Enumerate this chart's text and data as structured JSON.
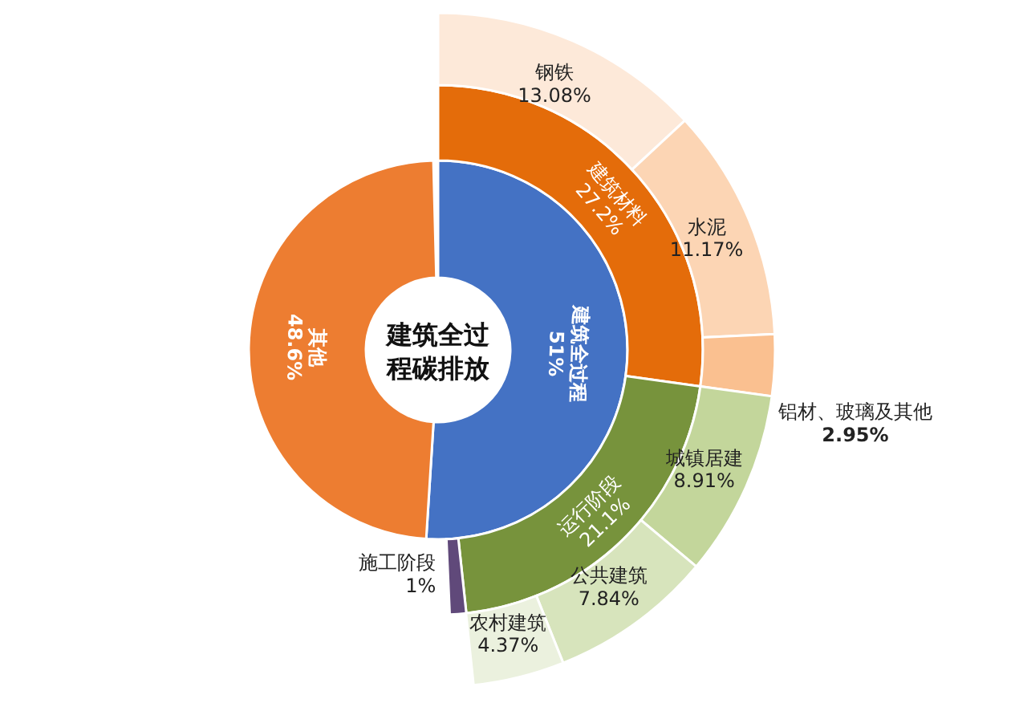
{
  "chart_data": {
    "type": "other",
    "title": "建筑全过程碳排放",
    "categories": [
      "建筑全过程",
      "其他",
      "建筑材料",
      "运行阶段",
      "施工阶段",
      "钢铁",
      "水泥",
      "铝材、玻璃及其他",
      "城镇居建",
      "公共建筑",
      "农村建筑"
    ],
    "series": [
      {
        "colors": [
          "#4472c4",
          "#ed7d31",
          null,
          null,
          null,
          null,
          null,
          null,
          null,
          null,
          null
        ],
        "values": [
          51,
          48.6,
          null,
          null,
          null,
          null,
          null,
          null,
          null,
          null,
          null
        ],
        "value_labels": [
          "51%",
          "48.6%",
          null,
          null,
          null,
          null,
          null,
          null,
          null,
          null,
          null
        ]
      },
      {
        "colors": [
          null,
          null,
          "#e46c0a",
          "#77933c",
          "#60497a",
          null,
          null,
          null,
          null,
          null,
          null
        ],
        "values": [
          null,
          null,
          27.2,
          21.1,
          1,
          null,
          null,
          null,
          null,
          null,
          null
        ],
        "value_labels": [
          null,
          null,
          "27.2%",
          "21.1%",
          "1%",
          null,
          null,
          null,
          null,
          null,
          null
        ]
      },
      {
        "colors": [
          null,
          null,
          null,
          null,
          null,
          "#fde9d9",
          "#fcd5b4",
          "#fac090",
          "#c3d69b",
          "#d7e4bc",
          "#ebf1de"
        ],
        "values": [
          null,
          null,
          null,
          null,
          null,
          13.08,
          11.17,
          2.95,
          8.91,
          7.84,
          4.37
        ],
        "value_labels": [
          null,
          null,
          null,
          null,
          null,
          "13.08%",
          "11.17%",
          "2.95%",
          "8.91%",
          "7.84%",
          "4.37%"
        ]
      }
    ]
  }
}
